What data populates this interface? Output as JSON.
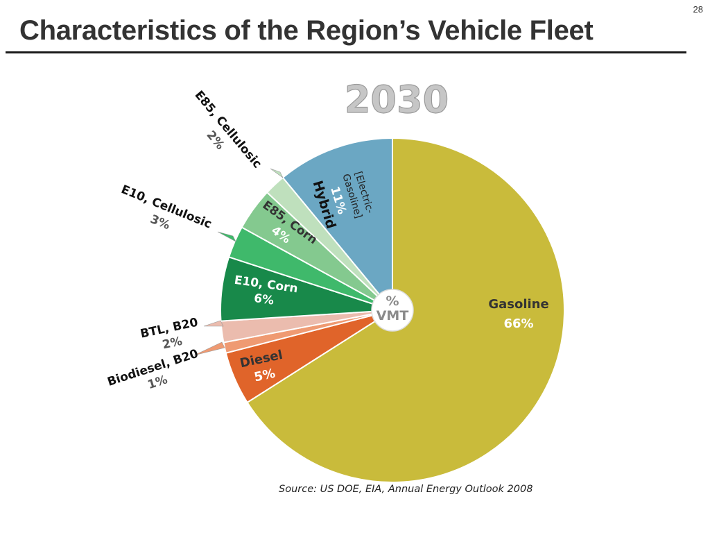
{
  "slide": {
    "number": "28",
    "title": "Characteristics of the Region’s Vehicle Fleet"
  },
  "chart_data": {
    "type": "pie",
    "title": "2030",
    "center_label": [
      "%",
      "VMT"
    ],
    "start_angle_deg": 0,
    "direction": "clockwise",
    "slices": [
      {
        "name": "Gasoline",
        "value": 66,
        "pct_label": "66%",
        "color": "#c9bb3b"
      },
      {
        "name": "Diesel",
        "value": 5,
        "pct_label": "5%",
        "color": "#e0642a"
      },
      {
        "name": "Biodiesel, B20",
        "value": 1,
        "pct_label": "1%",
        "color": "#ef9a72"
      },
      {
        "name": "BTL, B20",
        "value": 2,
        "pct_label": "2%",
        "color": "#ebbcae"
      },
      {
        "name": "E10, Corn",
        "value": 6,
        "pct_label": "6%",
        "color": "#18894a"
      },
      {
        "name": "E10, Cellulosic",
        "value": 3,
        "pct_label": "3%",
        "color": "#3fb96b"
      },
      {
        "name": "E85, Corn",
        "value": 4,
        "pct_label": "4%",
        "color": "#84c98f"
      },
      {
        "name": "E85, Cellulosic",
        "value": 2,
        "pct_label": "2%",
        "color": "#bfe0bd"
      },
      {
        "name": "Hybrid",
        "sub_label": "[Electric-Gasoline]",
        "sub_lines": [
          "[Electric-",
          "Gasoline]"
        ],
        "value": 11,
        "pct_label": "11%",
        "color": "#6ba7c3"
      }
    ],
    "source": "Source: US DOE, EIA, Annual Energy Outlook 2008"
  }
}
